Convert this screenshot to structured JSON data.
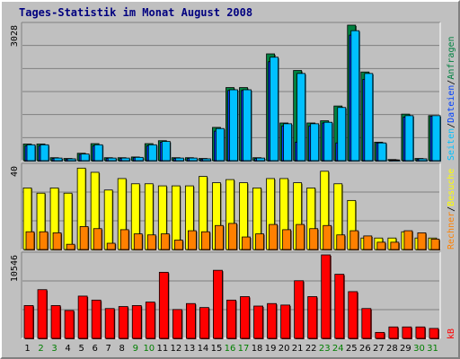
{
  "title": "Tages-Statistik im Monat August 2008",
  "colors": {
    "frame": "#c0c0c0",
    "plot_bg": "#c0c0c0",
    "grid": "#808080",
    "title": "#00007f",
    "hits": "#008040",
    "files": "#0040ff",
    "pages": "#00c0ff",
    "visits": "#ffff00",
    "sites": "#ff8000",
    "kb": "#ff0000",
    "weekday": "#000000",
    "weekend": "#007f00"
  },
  "chart_data": [
    {
      "type": "bar",
      "name": "hits-files-pages",
      "series_labels": [
        "Anfragen",
        "Dateien",
        "Seiten"
      ],
      "ymax_label": "3028",
      "ymax": 3028,
      "grid": true,
      "categories": [
        "1",
        "2",
        "3",
        "4",
        "5",
        "6",
        "7",
        "8",
        "9",
        "10",
        "11",
        "12",
        "13",
        "14",
        "15",
        "16",
        "17",
        "18",
        "19",
        "20",
        "21",
        "22",
        "23",
        "24",
        "25",
        "26",
        "27",
        "28",
        "29",
        "30",
        "31"
      ],
      "series": [
        {
          "name": "Anfragen",
          "values": [
            372,
            372,
            66,
            49,
            165,
            380,
            66,
            66,
            82,
            380,
            446,
            66,
            66,
            49,
            743,
            1633,
            1633,
            66,
            2386,
            842,
            2015,
            842,
            891,
            1221,
            3028,
            1981,
            413,
            25,
            1040,
            49,
            1006
          ]
        },
        {
          "name": "Dateien",
          "values": [
            330,
            330,
            49,
            33,
            140,
            330,
            49,
            49,
            66,
            330,
            413,
            49,
            49,
            33,
            660,
            1568,
            1568,
            49,
            2211,
            776,
            413,
            776,
            842,
            396,
            2805,
            1816,
            396,
            16,
            974,
            33,
            990
          ]
        },
        {
          "name": "Seiten",
          "values": [
            355,
            355,
            58,
            41,
            148,
            355,
            58,
            58,
            74,
            355,
            429,
            58,
            58,
            41,
            718,
            1584,
            1584,
            58,
            2311,
            825,
            1948,
            825,
            858,
            1188,
            2904,
            1948,
            396,
            16,
            1006,
            41,
            1006
          ]
        }
      ]
    },
    {
      "type": "bar",
      "name": "visits-sites",
      "series_labels": [
        "Besuche",
        "Rechner"
      ],
      "ymax_label": "40",
      "ymax": 40,
      "grid": true,
      "series": [
        {
          "name": "Besuche",
          "values": [
            29.5,
            27.0,
            29.5,
            27.0,
            39.0,
            37.0,
            28.5,
            34.0,
            31.5,
            31.5,
            30.5,
            30.5,
            30.5,
            35.0,
            32.0,
            33.5,
            32.0,
            29.5,
            34.0,
            34.0,
            32.0,
            29.5,
            37.5,
            31.5,
            23.5,
            5.5,
            5.5,
            5.5,
            8.5,
            5.5,
            5.5
          ]
        },
        {
          "name": "Rechner",
          "values": [
            8.5,
            8.5,
            8.0,
            2.5,
            11.0,
            10.0,
            3.0,
            9.5,
            7.5,
            7.0,
            7.5,
            4.5,
            9.0,
            8.5,
            11.5,
            12.5,
            6.0,
            7.5,
            12.0,
            9.5,
            12.0,
            10.0,
            11.5,
            7.0,
            9.0,
            6.5,
            3.5,
            3.5,
            9.0,
            8.0,
            5.0
          ]
        }
      ]
    },
    {
      "type": "bar",
      "name": "kb",
      "series_labels": [
        "kB"
      ],
      "ymax_label": "10546",
      "ymax": 10546,
      "grid": true,
      "series": [
        {
          "name": "kB",
          "values": [
            4146,
            6154,
            4146,
            3519,
            5339,
            4836,
            3770,
            4021,
            4146,
            4585,
            8350,
            3644,
            4397,
            3895,
            8600,
            4836,
            5275,
            4083,
            4397,
            4209,
            7283,
            5275,
            10546,
            8099,
            5903,
            3770,
            753,
            1444,
            1444,
            1444,
            1256
          ]
        }
      ]
    }
  ]
}
